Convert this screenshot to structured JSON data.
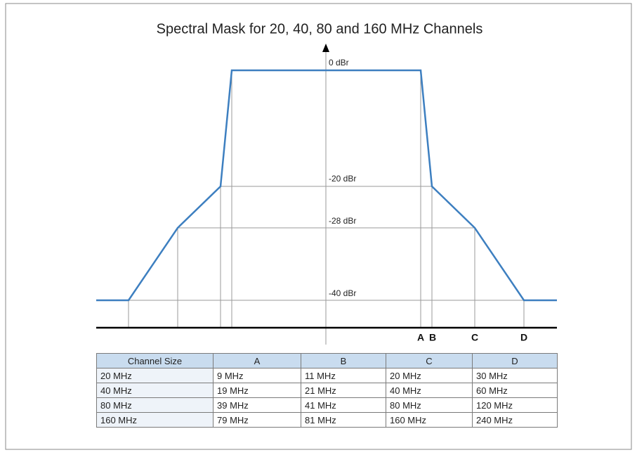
{
  "title": "Spectral Mask for 20, 40, 80 and 160 MHz Channels",
  "levels": [
    "0 dBr",
    "-20 dBr",
    "-28 dBr",
    "-40 dBr"
  ],
  "breakpoints": [
    "A",
    "B",
    "C",
    "D"
  ],
  "table": {
    "header": [
      "Channel Size",
      "A",
      "B",
      "C",
      "D"
    ],
    "rows": [
      [
        "20 MHz",
        "9 MHz",
        "11 MHz",
        "20 MHz",
        "30 MHz"
      ],
      [
        "40 MHz",
        "19 MHz",
        "21 MHz",
        "40 MHz",
        "60 MHz"
      ],
      [
        "80 MHz",
        "39 MHz",
        "41 MHz",
        "80 MHz",
        "120 MHz"
      ],
      [
        "160 MHz",
        "79 MHz",
        "81 MHz",
        "160 MHz",
        "240 MHz"
      ]
    ]
  }
}
